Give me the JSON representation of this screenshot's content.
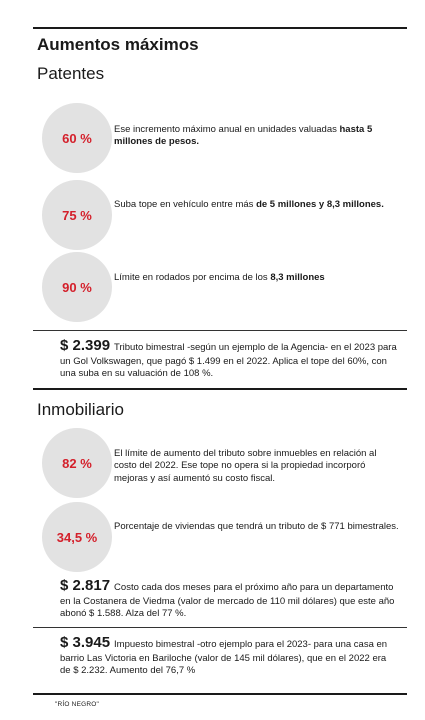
{
  "header": {
    "title": "Aumentos máximos"
  },
  "patentes": {
    "heading": "Patentes",
    "items": [
      {
        "percent": "60 %",
        "text_a": "Ese incremento máximo anual en unidades valuadas ",
        "text_b": "hasta 5 millones de pesos."
      },
      {
        "percent": "75 %",
        "text_a": "Suba tope en vehículo entre más ",
        "text_b": "de 5 millones y 8,3 millones."
      },
      {
        "percent": "90 %",
        "text_a": "Límite en rodados por encima de los ",
        "text_b": "8,3 millones"
      }
    ],
    "note": {
      "amount": "$ 2.399",
      "text": "Tributo bimestral -según un ejemplo de la Agencia- en el 2023 para un Gol Volkswagen, que pagó $ 1.499 en el 2022. Aplica el tope del 60%, con una suba en su valuación de 108 %."
    }
  },
  "inmobiliario": {
    "heading": "Inmobiliario",
    "items": [
      {
        "percent": "82 %",
        "text": "El límite de aumento del tributo sobre inmuebles en relación al costo del 2022. Ese tope no opera si la propiedad incorporó mejoras y así aumentó su costo fiscal."
      },
      {
        "percent": "34,5 %",
        "text": "Porcentaje de viviendas que tendrá un tributo de $ 771 bimestrales."
      }
    ],
    "notes": [
      {
        "amount": "$ 2.817",
        "text": "Costo cada dos meses para el próximo año para un departamento en la Costanera de Viedma (valor de mercado de 110 mil dólares) que este año abonó $ 1.588. Alza del 77 %."
      },
      {
        "amount": "$ 3.945",
        "text": "Impuesto bimestral -otro ejemplo para el 2023- para una casa en barrio Las Victoria en Bariloche (valor de 145 mil dólares), que en el 2022 era de $ 2.232. Aumento del 76,7 %"
      }
    ]
  },
  "footer": {
    "source": "\"RÍO NEGRO\""
  },
  "colors": {
    "accent": "#d4202b",
    "circle_bg": "#e2e2e2",
    "text": "#1a1a1a"
  }
}
